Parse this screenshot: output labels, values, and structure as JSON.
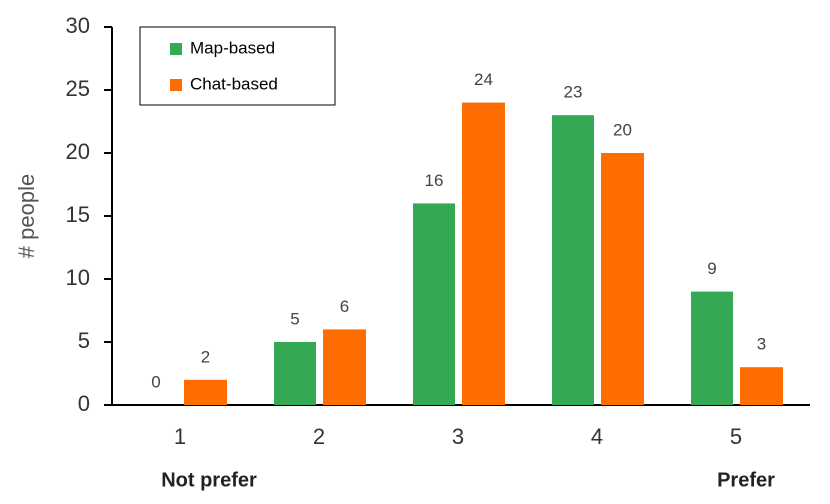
{
  "chart_data": {
    "type": "bar",
    "ylabel": "# people",
    "categories": [
      "1",
      "2",
      "3",
      "4",
      "5"
    ],
    "series": [
      {
        "name": "Map-based",
        "color": "#34a853",
        "values": [
          0,
          5,
          16,
          23,
          9
        ]
      },
      {
        "name": "Chat-based",
        "color": "#ff6d01",
        "values": [
          2,
          6,
          24,
          20,
          3
        ]
      }
    ],
    "ylim": [
      0,
      30
    ],
    "yticks": [
      0,
      5,
      10,
      15,
      20,
      25,
      30
    ],
    "legend": "upper left",
    "annotations": [
      "Not prefer",
      "Prefer"
    ]
  }
}
